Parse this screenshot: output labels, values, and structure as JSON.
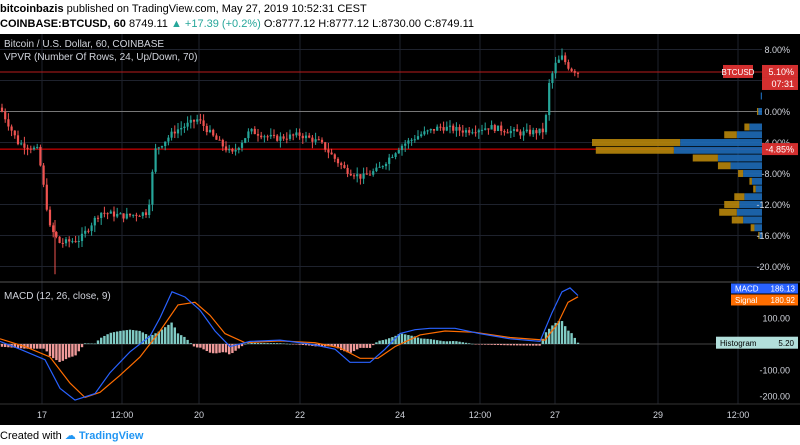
{
  "header": {
    "line1_author": "bitcoinbazis",
    "line1_rest": "published on TradingView.com, May 27, 2019 10:52:31 CEST",
    "line2_prefix": "COINBASE:BTCUSD, 60",
    "line2_price": "8749.11",
    "line2_change": "▲ +17.39 (+0.2%)",
    "line2_ohlc": "O:8777.12 H:8777.12 L:8730.00 C:8749.11"
  },
  "footer": {
    "prefix": "Created with",
    "brand": "TradingView"
  },
  "legend": {
    "main_title": "Bitcoin / U.S. Dollar, 60, COINBASE",
    "vpvr": "VPVR (Number Of Rows, 24, Up/Down, 70)",
    "macd": "MACD (12, 26, close, 9)"
  },
  "colors": {
    "up": "#26a69a",
    "down": "#ef5350",
    "macd": "#2962ff",
    "signal": "#ff6d00",
    "vp_up": "#1e6bb8",
    "vp_down": "#b8860b",
    "red_line": "#ff0000"
  },
  "chart_data": [
    {
      "type": "candlestick",
      "title": "Bitcoin / U.S. Dollar, 60, COINBASE",
      "y_axis": "percent",
      "y_ticks": [
        "8.00%",
        "4.00%",
        "0.00%",
        "-4.00%",
        "-8.00%",
        "-12.00%",
        "-16.00%",
        "-20.00%"
      ],
      "ylim": [
        -22,
        10
      ],
      "x_ticks": [
        "17",
        "12:00",
        "20",
        "22",
        "24",
        "12:00",
        "27",
        "29",
        "12:00"
      ],
      "price_label": {
        "symbol": "BTCUSD",
        "value": "5.10%",
        "countdown": "07:31"
      },
      "level_label": "-4.85%",
      "key_points": [
        {
          "x": 0,
          "y": 0.5
        },
        {
          "x": 18,
          "y": -4
        },
        {
          "x": 38,
          "y": -5
        },
        {
          "x": 50,
          "y": -15
        },
        {
          "x": 60,
          "y": -17
        },
        {
          "x": 80,
          "y": -16.5
        },
        {
          "x": 100,
          "y": -13
        },
        {
          "x": 125,
          "y": -13.5
        },
        {
          "x": 148,
          "y": -13
        },
        {
          "x": 155,
          "y": -5
        },
        {
          "x": 175,
          "y": -2.5
        },
        {
          "x": 198,
          "y": -1
        },
        {
          "x": 215,
          "y": -3.5
        },
        {
          "x": 232,
          "y": -5.5
        },
        {
          "x": 250,
          "y": -2.5
        },
        {
          "x": 275,
          "y": -3.5
        },
        {
          "x": 300,
          "y": -3
        },
        {
          "x": 320,
          "y": -4
        },
        {
          "x": 345,
          "y": -7.5
        },
        {
          "x": 362,
          "y": -8.5
        },
        {
          "x": 378,
          "y": -7.5
        },
        {
          "x": 400,
          "y": -4.5
        },
        {
          "x": 420,
          "y": -3
        },
        {
          "x": 440,
          "y": -2
        },
        {
          "x": 465,
          "y": -2.5
        },
        {
          "x": 490,
          "y": -2
        },
        {
          "x": 520,
          "y": -2.8
        },
        {
          "x": 545,
          "y": -2.5
        },
        {
          "x": 548,
          "y": 3
        },
        {
          "x": 555,
          "y": 6
        },
        {
          "x": 562,
          "y": 7
        },
        {
          "x": 570,
          "y": 5.5
        },
        {
          "x": 578,
          "y": 5.1
        }
      ]
    },
    {
      "type": "bar",
      "title": "VPVR (Number Of Rows, 24, Up/Down, 70)",
      "rows": [
        {
          "y": 2,
          "up": 1,
          "down": 0
        },
        {
          "y": 0,
          "up": 3,
          "down": 1
        },
        {
          "y": -2,
          "up": 10,
          "down": 4
        },
        {
          "y": -3,
          "up": 20,
          "down": 10
        },
        {
          "y": -4,
          "up": 65,
          "down": 70
        },
        {
          "y": -5,
          "up": 70,
          "down": 62
        },
        {
          "y": -6,
          "up": 35,
          "down": 20
        },
        {
          "y": -7,
          "up": 25,
          "down": 10
        },
        {
          "y": -8,
          "up": 15,
          "down": 4
        },
        {
          "y": -9,
          "up": 8,
          "down": 2
        },
        {
          "y": -10,
          "up": 5,
          "down": 2
        },
        {
          "y": -11,
          "up": 14,
          "down": 8
        },
        {
          "y": -12,
          "up": 18,
          "down": 12
        },
        {
          "y": -13,
          "up": 20,
          "down": 14
        },
        {
          "y": -14,
          "up": 15,
          "down": 9
        },
        {
          "y": -15,
          "up": 6,
          "down": 3
        },
        {
          "y": -16,
          "up": 2,
          "down": 1
        }
      ]
    },
    {
      "type": "line",
      "title": "MACD (12, 26, close, 9)",
      "y_ticks": [
        "100.00",
        "0.00",
        "-100.00",
        "-200.00"
      ],
      "ylim": [
        -230,
        230
      ],
      "labels": {
        "macd": "MACD",
        "macd_value": "186.13",
        "signal": "Signal",
        "signal_value": "180.92",
        "histogram": "Histogram",
        "histogram_value": "5.20"
      },
      "series": [
        {
          "name": "MACD",
          "points": [
            {
              "x": 0,
              "y": 10
            },
            {
              "x": 20,
              "y": -20
            },
            {
              "x": 45,
              "y": -60
            },
            {
              "x": 60,
              "y": -170
            },
            {
              "x": 75,
              "y": -215
            },
            {
              "x": 95,
              "y": -190
            },
            {
              "x": 110,
              "y": -110
            },
            {
              "x": 130,
              "y": -30
            },
            {
              "x": 150,
              "y": 30
            },
            {
              "x": 160,
              "y": 100
            },
            {
              "x": 172,
              "y": 200
            },
            {
              "x": 185,
              "y": 180
            },
            {
              "x": 200,
              "y": 130
            },
            {
              "x": 215,
              "y": 50
            },
            {
              "x": 230,
              "y": -10
            },
            {
              "x": 250,
              "y": 10
            },
            {
              "x": 280,
              "y": 15
            },
            {
              "x": 310,
              "y": 0
            },
            {
              "x": 335,
              "y": -20
            },
            {
              "x": 350,
              "y": -70
            },
            {
              "x": 370,
              "y": -70
            },
            {
              "x": 385,
              "y": -20
            },
            {
              "x": 400,
              "y": 40
            },
            {
              "x": 415,
              "y": 55
            },
            {
              "x": 430,
              "y": 60
            },
            {
              "x": 455,
              "y": 60
            },
            {
              "x": 480,
              "y": 40
            },
            {
              "x": 510,
              "y": 20
            },
            {
              "x": 540,
              "y": 10
            },
            {
              "x": 552,
              "y": 120
            },
            {
              "x": 562,
              "y": 200
            },
            {
              "x": 570,
              "y": 215
            },
            {
              "x": 578,
              "y": 186
            }
          ]
        },
        {
          "name": "Signal",
          "points": [
            {
              "x": 0,
              "y": 20
            },
            {
              "x": 25,
              "y": -10
            },
            {
              "x": 50,
              "y": -50
            },
            {
              "x": 70,
              "y": -150
            },
            {
              "x": 85,
              "y": -205
            },
            {
              "x": 100,
              "y": -185
            },
            {
              "x": 120,
              "y": -120
            },
            {
              "x": 140,
              "y": -50
            },
            {
              "x": 160,
              "y": 50
            },
            {
              "x": 178,
              "y": 150
            },
            {
              "x": 195,
              "y": 160
            },
            {
              "x": 210,
              "y": 110
            },
            {
              "x": 225,
              "y": 40
            },
            {
              "x": 245,
              "y": 5
            },
            {
              "x": 280,
              "y": 12
            },
            {
              "x": 315,
              "y": 5
            },
            {
              "x": 340,
              "y": -15
            },
            {
              "x": 360,
              "y": -55
            },
            {
              "x": 378,
              "y": -55
            },
            {
              "x": 395,
              "y": -10
            },
            {
              "x": 420,
              "y": 35
            },
            {
              "x": 445,
              "y": 50
            },
            {
              "x": 475,
              "y": 45
            },
            {
              "x": 510,
              "y": 25
            },
            {
              "x": 545,
              "y": 15
            },
            {
              "x": 558,
              "y": 80
            },
            {
              "x": 568,
              "y": 160
            },
            {
              "x": 578,
              "y": 181
            }
          ]
        }
      ]
    }
  ]
}
